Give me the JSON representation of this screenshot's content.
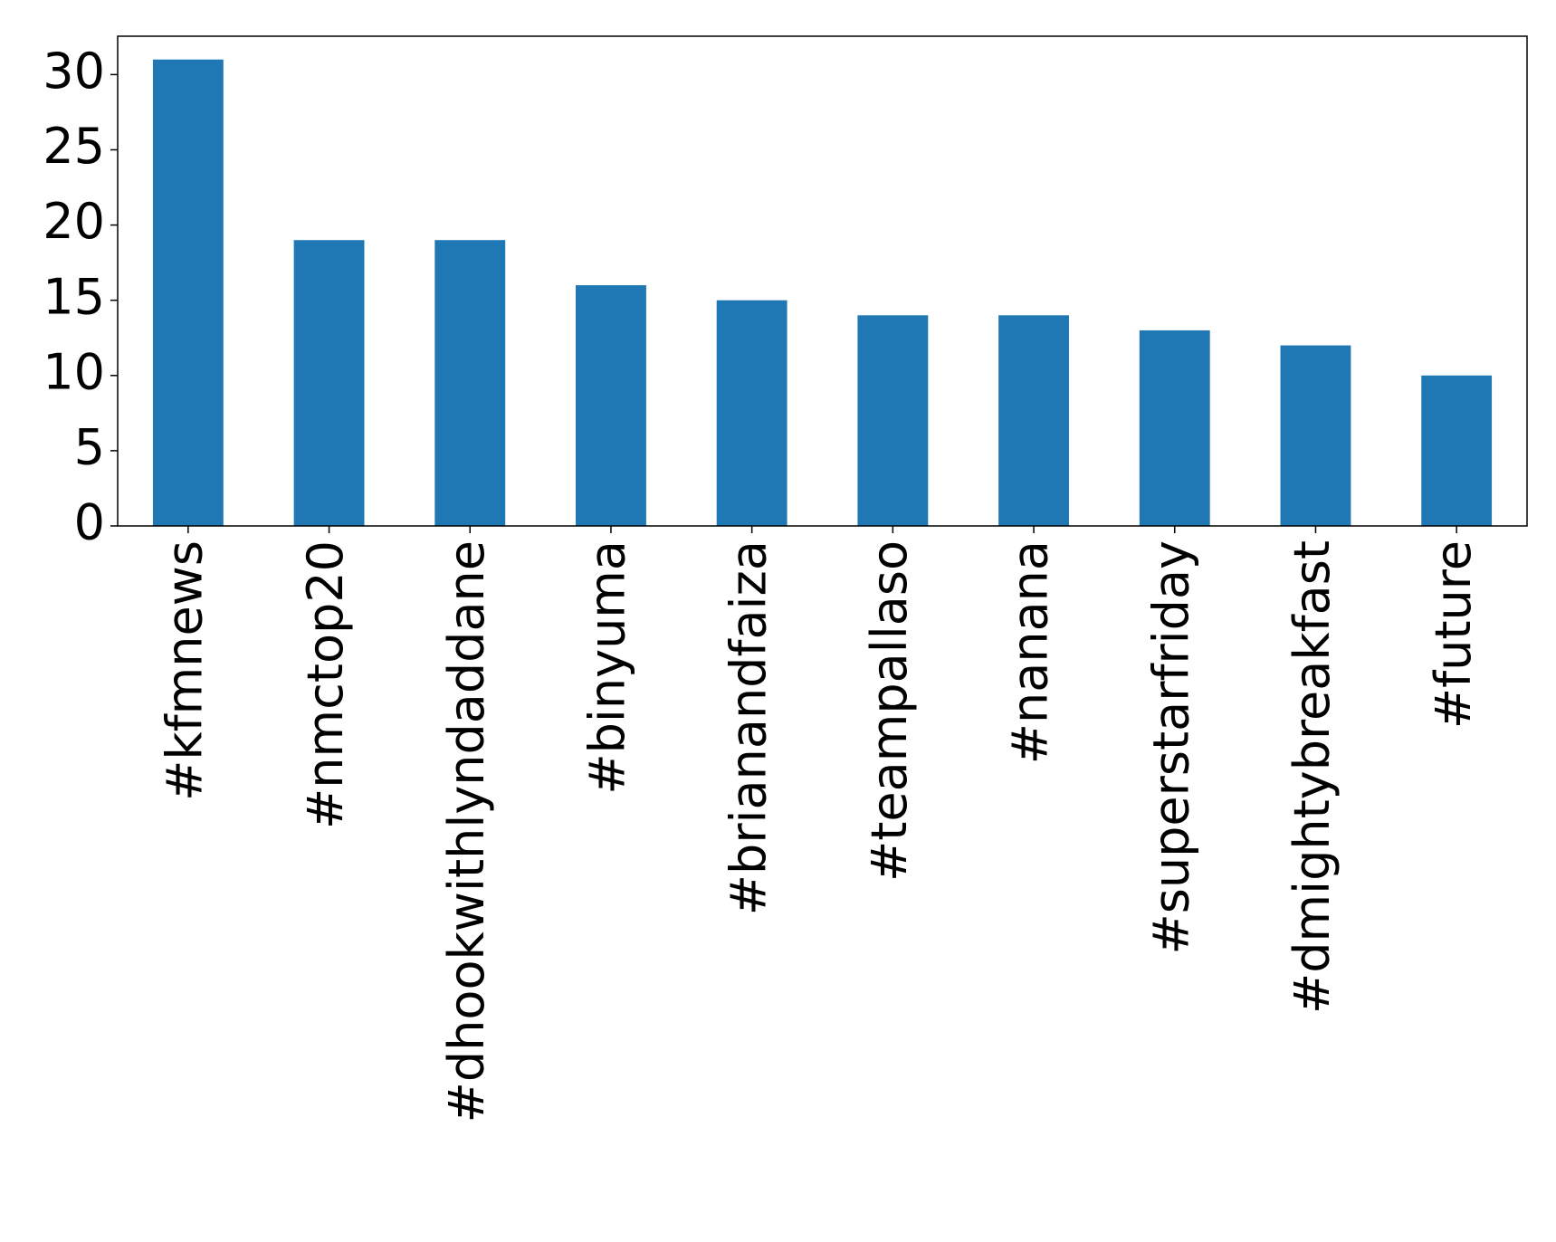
{
  "chart_data": {
    "type": "bar",
    "categories": [
      "#kfmnews",
      "#nmctop20",
      "#dhookwithlyndaddane",
      "#binyuma",
      "#brianandfaiza",
      "#teampallaso",
      "#nanana",
      "#superstarfriday",
      "#dmightybreakfast",
      "#future"
    ],
    "values": [
      31,
      19,
      19,
      16,
      15,
      14,
      14,
      13,
      12,
      10
    ],
    "color": "#1f77b4",
    "ylim": [
      0,
      32.55
    ],
    "yticks": [
      0,
      5,
      10,
      15,
      20,
      25,
      30
    ],
    "grid": false
  }
}
